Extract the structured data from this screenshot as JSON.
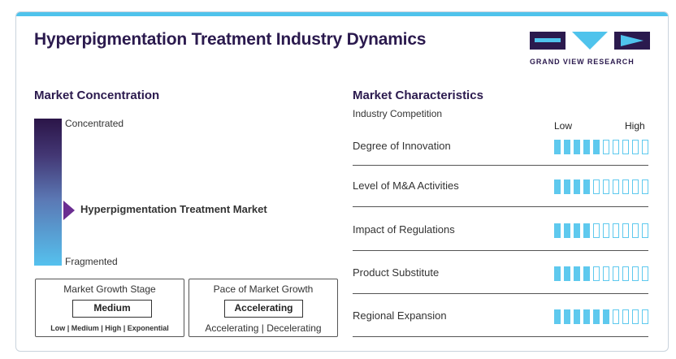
{
  "header": {
    "title": "Hyperpigmentation Treatment Industry Dynamics",
    "brand": "GRAND VIEW RESEARCH"
  },
  "colors": {
    "accent": "#4fc3ec",
    "title": "#2b1a4e",
    "pointer": "#6a2d91",
    "meter": "#5ec9ee"
  },
  "concentration": {
    "title": "Market Concentration",
    "top_label": "Concentrated",
    "bottom_label": "Fragmented",
    "marker_label": "Hyperpigmentation Treatment Market"
  },
  "growth_stage": {
    "title": "Market Growth Stage",
    "value": "Medium",
    "options": "Low | Medium | High | Exponential"
  },
  "growth_pace": {
    "title": "Pace of Market Growth",
    "value": "Accelerating",
    "options": "Accelerating | Decelerating"
  },
  "characteristics": {
    "title": "Market Characteristics",
    "subtitle": "Industry Competition",
    "low_label": "Low",
    "high_label": "High",
    "segments_total": 10,
    "rows": [
      {
        "label": "Degree of Innovation",
        "level": 5
      },
      {
        "label": "Level of M&A Activities",
        "level": 4
      },
      {
        "label": "Impact of Regulations",
        "level": 4
      },
      {
        "label": "Product Substitute",
        "level": 4
      },
      {
        "label": "Regional Expansion",
        "level": 6
      }
    ]
  }
}
